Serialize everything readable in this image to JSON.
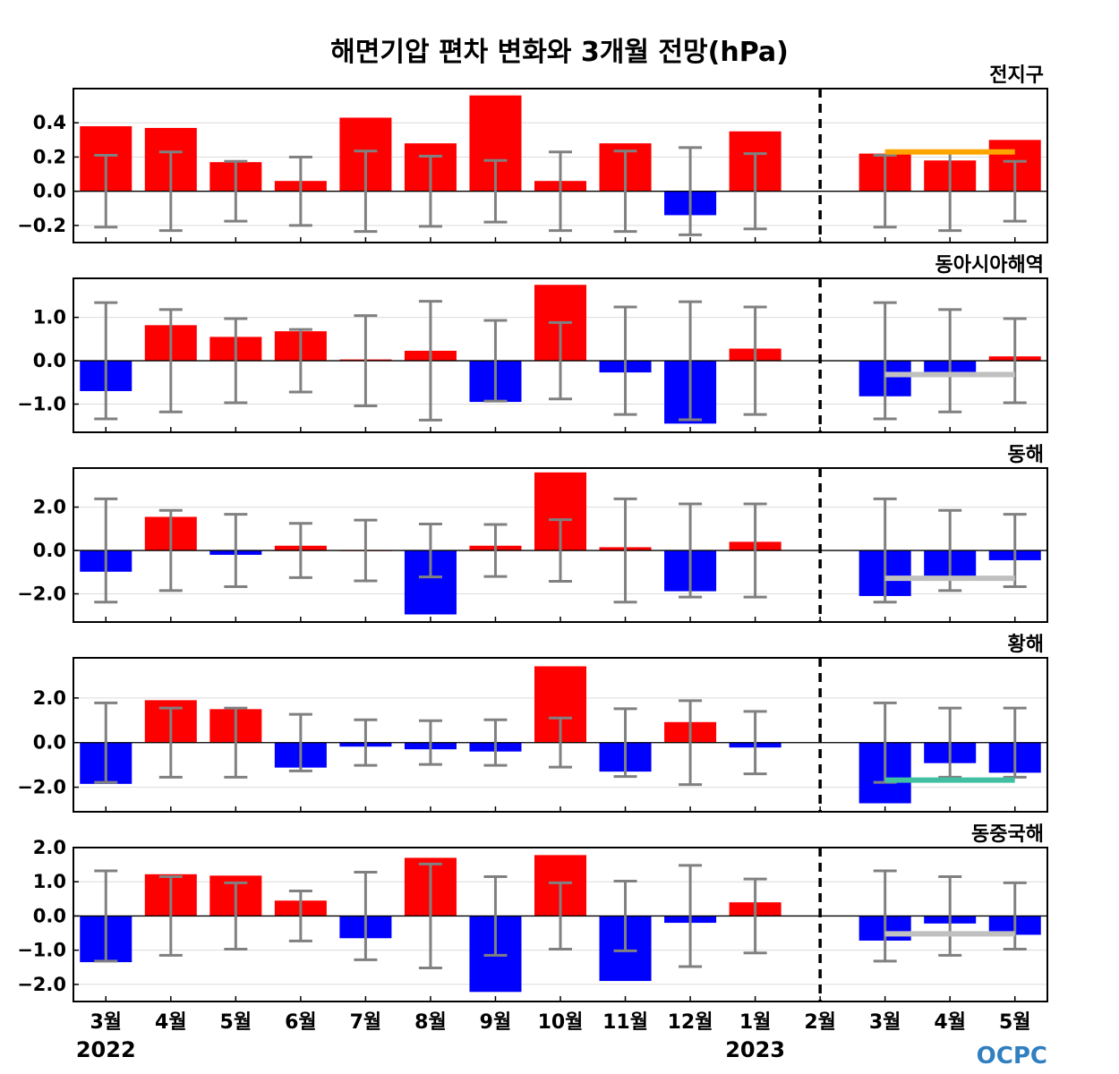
{
  "chart_data": {
    "type": "bar",
    "title": "해면기압 편차 변화와 3개월 전망(hPa)",
    "categories": [
      "3월",
      "4월",
      "5월",
      "6월",
      "7월",
      "8월",
      "9월",
      "10월",
      "11월",
      "12월",
      "1월",
      "2월",
      "3월",
      "4월",
      "5월"
    ],
    "years": [
      {
        "label": "2022",
        "category_index": 0
      },
      {
        "label": "2023",
        "category_index": 10
      }
    ],
    "forecast_divider_index": 11,
    "positive_color": "#ff0000",
    "negative_color": "#0000ff",
    "errorbar_color": "#808080",
    "panels": [
      {
        "label": "전지구",
        "ylim": [
          -0.3,
          0.6
        ],
        "yticks": [
          0.4,
          0.2,
          0.0,
          -0.2
        ],
        "ytick_labels": [
          "0.4",
          "0.2",
          "0.0",
          "−0.2"
        ],
        "values": [
          0.38,
          0.37,
          0.17,
          0.06,
          0.43,
          0.28,
          0.56,
          0.06,
          0.28,
          -0.14,
          0.35,
          0.0,
          0.22,
          0.18,
          0.3
        ],
        "error_half_range": [
          0.21,
          0.23,
          0.175,
          0.2,
          0.235,
          0.205,
          0.18,
          0.23,
          0.235,
          0.255,
          0.22,
          null,
          0.21,
          0.23,
          0.175
        ],
        "forecast": {
          "value": 0.23,
          "color": "#ffa500"
        }
      },
      {
        "label": "동아시아해역",
        "ylim": [
          -1.65,
          1.9
        ],
        "yticks": [
          1.0,
          0.0,
          -1.0
        ],
        "ytick_labels": [
          "1.0",
          "0.0",
          "−1.0"
        ],
        "values": [
          -0.7,
          0.82,
          0.55,
          0.68,
          0.03,
          0.23,
          -0.95,
          1.75,
          -0.27,
          -1.45,
          0.28,
          0.0,
          -0.82,
          -0.27,
          0.1
        ],
        "error_half_range": [
          1.34,
          1.18,
          0.97,
          0.72,
          1.04,
          1.37,
          0.93,
          0.88,
          1.24,
          1.36,
          1.24,
          null,
          1.34,
          1.18,
          0.97
        ],
        "forecast": {
          "value": -0.32,
          "color": "#c0c0c0"
        }
      },
      {
        "label": "동해",
        "ylim": [
          -3.3,
          3.8
        ],
        "yticks": [
          2.0,
          0.0,
          -2.0
        ],
        "ytick_labels": [
          "2.0",
          "0.0",
          "−2.0"
        ],
        "values": [
          -0.98,
          1.55,
          -0.2,
          0.22,
          0.02,
          -2.95,
          0.22,
          3.6,
          0.15,
          -1.88,
          0.4,
          0.0,
          -2.1,
          -1.18,
          -0.45
        ],
        "error_half_range": [
          2.38,
          1.85,
          1.67,
          1.25,
          1.4,
          1.22,
          1.2,
          1.42,
          2.38,
          2.15,
          2.15,
          null,
          2.38,
          1.85,
          1.67
        ],
        "forecast": {
          "value": -1.28,
          "color": "#c0c0c0"
        }
      },
      {
        "label": "황해",
        "ylim": [
          -3.1,
          3.8
        ],
        "yticks": [
          2.0,
          0.0,
          -2.0
        ],
        "ytick_labels": [
          "2.0",
          "0.0",
          "−2.0"
        ],
        "values": [
          -1.85,
          1.9,
          1.5,
          -1.12,
          -0.18,
          -0.3,
          -0.4,
          3.42,
          -1.3,
          0.92,
          -0.22,
          0.0,
          -2.72,
          -0.92,
          -1.35
        ],
        "error_half_range": [
          1.78,
          1.55,
          1.55,
          1.27,
          1.02,
          0.98,
          1.02,
          1.1,
          1.52,
          1.88,
          1.4,
          null,
          1.78,
          1.55,
          1.55
        ],
        "forecast": {
          "value": -1.68,
          "color": "#40c0a0"
        }
      },
      {
        "label": "동중국해",
        "ylim": [
          -2.5,
          2.0
        ],
        "yticks": [
          2.0,
          1.0,
          0.0,
          -1.0,
          -2.0
        ],
        "ytick_labels": [
          "2.0",
          "1.0",
          "0.0",
          "−1.0",
          "−2.0"
        ],
        "values": [
          -1.35,
          1.22,
          1.18,
          0.45,
          -0.65,
          1.7,
          -2.22,
          1.78,
          -1.9,
          -0.2,
          0.4,
          0.0,
          -0.72,
          -0.22,
          -0.55
        ],
        "error_half_range": [
          1.32,
          1.15,
          0.97,
          0.73,
          1.28,
          1.52,
          1.15,
          0.97,
          1.02,
          1.48,
          1.08,
          null,
          1.32,
          1.15,
          0.97
        ],
        "forecast": {
          "value": -0.52,
          "color": "#c0c0c0"
        }
      }
    ]
  },
  "logo": {
    "text": "OCPC"
  }
}
